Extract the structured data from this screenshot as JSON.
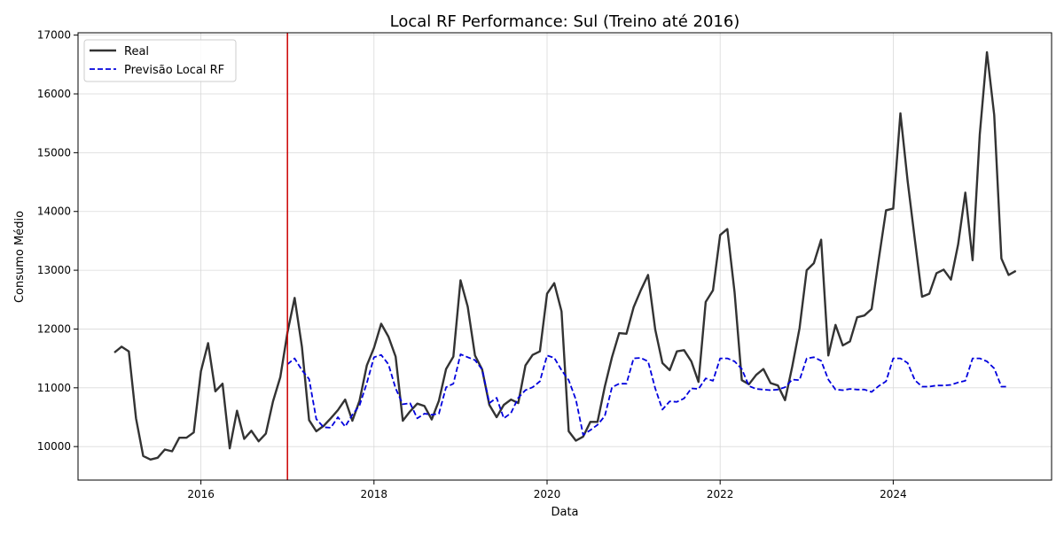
{
  "chart_data": {
    "type": "line",
    "title": "Local RF Performance: Sul (Treino até 2016)",
    "xlabel": "Data",
    "ylabel": "Consumo Médio",
    "xlim": [
      2014.58,
      2025.83
    ],
    "ylim": [
      9430,
      17040
    ],
    "x_ticks": [
      2016,
      2018,
      2020,
      2022,
      2024
    ],
    "y_ticks": [
      10000,
      11000,
      12000,
      13000,
      14000,
      15000,
      16000,
      17000
    ],
    "grid": true,
    "legend_position": "top-left",
    "vline": {
      "x": 2017.0,
      "color": "#cc0000"
    },
    "series": [
      {
        "name": "Real",
        "color": "#333333",
        "style": "solid",
        "start": 2015.0,
        "step": 0.0833333,
        "values": [
          11600,
          11700,
          11620,
          10480,
          9840,
          9780,
          9810,
          9950,
          9920,
          10150,
          10150,
          10240,
          11280,
          11760,
          10940,
          11070,
          9970,
          10610,
          10130,
          10270,
          10090,
          10220,
          10770,
          11180,
          11940,
          12530,
          11700,
          10450,
          10260,
          10350,
          10480,
          10620,
          10800,
          10440,
          10780,
          11380,
          11680,
          12090,
          11870,
          11530,
          10440,
          10600,
          10730,
          10690,
          10460,
          10780,
          11320,
          11530,
          12830,
          12380,
          11550,
          11310,
          10710,
          10500,
          10710,
          10800,
          10740,
          11380,
          11560,
          11620,
          12600,
          12780,
          12300,
          10260,
          10100,
          10170,
          10420,
          10420,
          11020,
          11520,
          11930,
          11920,
          12370,
          12660,
          12920,
          11990,
          11420,
          11300,
          11620,
          11640,
          11450,
          11100,
          12460,
          12660,
          13600,
          13700,
          12620,
          11130,
          11060,
          11220,
          11320,
          11080,
          11040,
          10790,
          11360,
          12010,
          13000,
          13120,
          13520,
          11550,
          12070,
          11720,
          11790,
          12200,
          12230,
          12340,
          13190,
          14020,
          14050,
          15670,
          14510,
          13520,
          12550,
          12600,
          12950,
          13010,
          12840,
          13440,
          14320,
          13170,
          15310,
          16710,
          15640,
          13200,
          12920,
          12990
        ]
      },
      {
        "name": "Previsão Local RF",
        "color": "#0000dd",
        "style": "dashed",
        "start": 2017.0,
        "step": 0.0833333,
        "values": [
          11400,
          11500,
          11300,
          11150,
          10470,
          10330,
          10320,
          10500,
          10340,
          10540,
          10700,
          11080,
          11520,
          11560,
          11400,
          10990,
          10720,
          10740,
          10480,
          10560,
          10540,
          10560,
          11010,
          11070,
          11570,
          11520,
          11470,
          11310,
          10740,
          10830,
          10480,
          10570,
          10830,
          10960,
          11010,
          11110,
          11550,
          11510,
          11300,
          11130,
          10800,
          10200,
          10280,
          10370,
          10520,
          11010,
          11070,
          11070,
          11500,
          11510,
          11450,
          10990,
          10630,
          10770,
          10760,
          10820,
          10990,
          10980,
          11160,
          11120,
          11500,
          11500,
          11450,
          11320,
          11030,
          10980,
          10970,
          10960,
          10970,
          11010,
          11140,
          11130,
          11500,
          11520,
          11460,
          11140,
          10970,
          10960,
          10980,
          10970,
          10970,
          10930,
          11030,
          11110,
          11500,
          11500,
          11420,
          11130,
          11020,
          11020,
          11040,
          11040,
          11050,
          11090,
          11120,
          11500,
          11500,
          11450,
          11330,
          11020,
          11020
        ]
      }
    ]
  }
}
